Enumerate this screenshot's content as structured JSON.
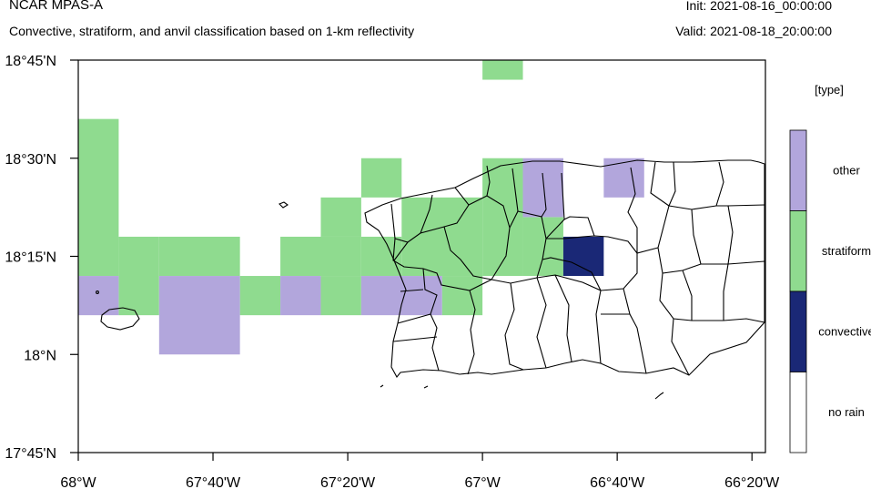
{
  "header": {
    "title": "NCAR MPAS-A",
    "subtitle": "Convective, stratiform, and anvil classification based on 1-km reflectivity",
    "init": "Init: 2021-08-16_00:00:00",
    "valid": "Valid: 2021-08-18_20:00:00"
  },
  "map": {
    "lat_labels": [
      "18°45'N",
      "18°30'N",
      "18°15'N",
      "18°N",
      "17°45'N"
    ],
    "lon_labels": [
      "68°W",
      "67°40'W",
      "67°20'W",
      "67°W",
      "66°40'W",
      "66°20'W"
    ],
    "extent": {
      "lon": [
        -68.0,
        -66.3
      ],
      "lat": [
        17.75,
        18.75
      ]
    },
    "region": "Puerto Rico"
  },
  "legend": {
    "title": "[type]",
    "items": [
      {
        "label": "other",
        "color": "#b2a6dc"
      },
      {
        "label": "stratiform",
        "color": "#8fdb8f"
      },
      {
        "label": "convective",
        "color": "#1a2876"
      },
      {
        "label": "no rain",
        "color": "#ffffff"
      }
    ]
  },
  "colors": {
    "other": "#b2a6dc",
    "stratiform": "#8fdb8f",
    "convective": "#1a2876"
  },
  "cells": {
    "other": [
      [
        -68.0,
        18.1,
        -67.9,
        18.2
      ],
      [
        -67.8,
        18.0,
        -67.6,
        18.2
      ],
      [
        -67.5,
        18.1,
        -67.4,
        18.2
      ],
      [
        -67.3,
        18.1,
        -67.1,
        18.2
      ],
      [
        -66.9,
        18.35,
        -66.8,
        18.5
      ],
      [
        -66.7,
        18.4,
        -66.6,
        18.5
      ]
    ],
    "stratiform": [
      [
        -68.0,
        18.2,
        -67.9,
        18.6
      ],
      [
        -67.9,
        18.1,
        -67.8,
        18.3
      ],
      [
        -67.8,
        18.2,
        -67.6,
        18.3
      ],
      [
        -67.6,
        18.1,
        -67.5,
        18.2
      ],
      [
        -67.5,
        18.2,
        -67.3,
        18.3
      ],
      [
        -67.4,
        18.1,
        -67.3,
        18.2
      ],
      [
        -67.4,
        18.3,
        -67.3,
        18.4
      ],
      [
        -67.3,
        18.4,
        -67.2,
        18.5
      ],
      [
        -67.2,
        18.2,
        -67.0,
        18.4
      ],
      [
        -67.3,
        18.2,
        -67.2,
        18.3
      ],
      [
        -67.1,
        18.1,
        -67.0,
        18.2
      ],
      [
        -67.0,
        18.2,
        -66.9,
        18.5
      ],
      [
        -66.9,
        18.2,
        -66.8,
        18.35
      ],
      [
        -67.0,
        18.7,
        -66.9,
        18.75
      ]
    ],
    "convective": [
      [
        -66.8,
        18.2,
        -66.7,
        18.3
      ]
    ]
  }
}
